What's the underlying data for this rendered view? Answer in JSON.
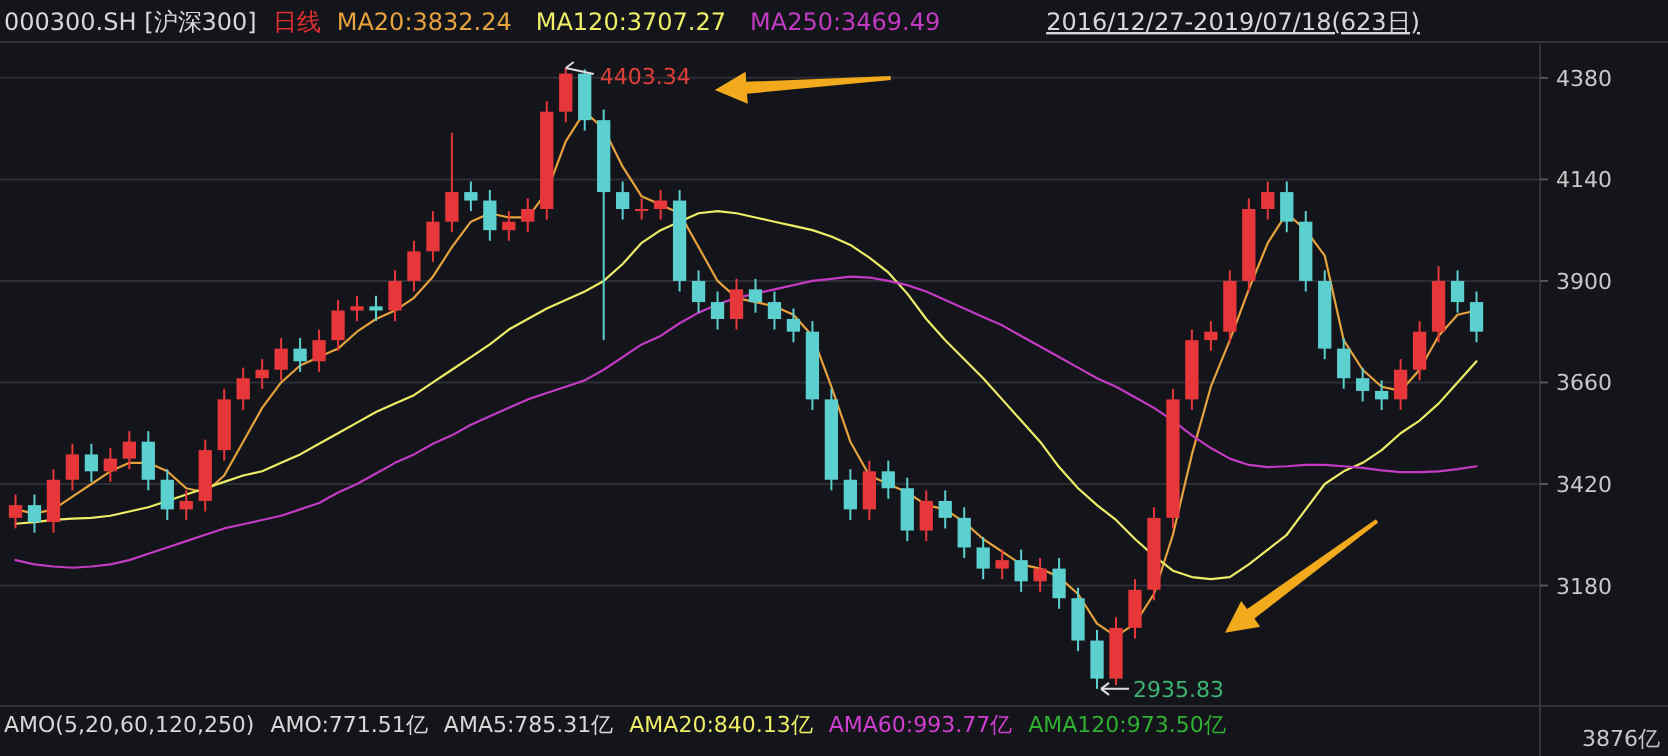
{
  "chart_data": {
    "type": "candlestick",
    "title": "000300.SH [沪深300]",
    "subtitle": "2016/12/27-2019/07/18(623日)",
    "categories": [
      null,
      null,
      null,
      null,
      null,
      null,
      null,
      null,
      null,
      null,
      null,
      null,
      null,
      null,
      null,
      null,
      null,
      null,
      null,
      null,
      null,
      null,
      null,
      null,
      null,
      null,
      null,
      null,
      null,
      null,
      null,
      null,
      null,
      null,
      null,
      null,
      null,
      null,
      null,
      null,
      null,
      null,
      null,
      null,
      null,
      null,
      null,
      null,
      null,
      null,
      null,
      null,
      null,
      null,
      null,
      null,
      null,
      null,
      null,
      null,
      null,
      null,
      null,
      null,
      null,
      null,
      null,
      null,
      null,
      null,
      null,
      null,
      null,
      null,
      null,
      null,
      null,
      null
    ],
    "ohlc": [
      [
        3340,
        3395,
        3315,
        3370
      ],
      [
        3370,
        3395,
        3305,
        3330
      ],
      [
        3330,
        3455,
        3305,
        3430
      ],
      [
        3430,
        3515,
        3405,
        3490
      ],
      [
        3490,
        3515,
        3425,
        3450
      ],
      [
        3450,
        3505,
        3425,
        3480
      ],
      [
        3480,
        3545,
        3455,
        3520
      ],
      [
        3520,
        3545,
        3405,
        3430
      ],
      [
        3430,
        3455,
        3335,
        3360
      ],
      [
        3360,
        3405,
        3335,
        3380
      ],
      [
        3380,
        3525,
        3355,
        3500
      ],
      [
        3500,
        3645,
        3475,
        3620
      ],
      [
        3620,
        3695,
        3595,
        3670
      ],
      [
        3670,
        3715,
        3645,
        3690
      ],
      [
        3690,
        3765,
        3665,
        3740
      ],
      [
        3740,
        3765,
        3685,
        3710
      ],
      [
        3710,
        3785,
        3685,
        3760
      ],
      [
        3760,
        3855,
        3735,
        3830
      ],
      [
        3830,
        3865,
        3805,
        3840
      ],
      [
        3840,
        3865,
        3805,
        3830
      ],
      [
        3830,
        3925,
        3805,
        3900
      ],
      [
        3900,
        3995,
        3875,
        3970
      ],
      [
        3970,
        4065,
        3945,
        4040
      ],
      [
        4040,
        4250,
        4015,
        4110
      ],
      [
        4110,
        4135,
        4065,
        4090
      ],
      [
        4090,
        4115,
        3995,
        4020
      ],
      [
        4020,
        4065,
        3995,
        4040
      ],
      [
        4040,
        4095,
        4015,
        4070
      ],
      [
        4070,
        4325,
        4045,
        4300
      ],
      [
        4300,
        4403.34,
        4275,
        4390
      ],
      [
        4390,
        4400,
        4255,
        4280
      ],
      [
        4280,
        4305,
        3760,
        4110
      ],
      [
        4110,
        4135,
        4045,
        4070
      ],
      [
        4070,
        4095,
        4045,
        4070
      ],
      [
        4070,
        4115,
        4045,
        4090
      ],
      [
        4090,
        4115,
        3875,
        3900
      ],
      [
        3900,
        3925,
        3825,
        3850
      ],
      [
        3850,
        3875,
        3785,
        3810
      ],
      [
        3810,
        3905,
        3785,
        3880
      ],
      [
        3880,
        3905,
        3825,
        3850
      ],
      [
        3850,
        3875,
        3785,
        3810
      ],
      [
        3810,
        3835,
        3755,
        3780
      ],
      [
        3780,
        3805,
        3595,
        3620
      ],
      [
        3620,
        3645,
        3405,
        3430
      ],
      [
        3430,
        3455,
        3335,
        3360
      ],
      [
        3360,
        3475,
        3335,
        3450
      ],
      [
        3450,
        3475,
        3385,
        3410
      ],
      [
        3410,
        3435,
        3285,
        3310
      ],
      [
        3310,
        3405,
        3285,
        3380
      ],
      [
        3380,
        3405,
        3315,
        3340
      ],
      [
        3340,
        3365,
        3245,
        3270
      ],
      [
        3270,
        3295,
        3195,
        3220
      ],
      [
        3220,
        3265,
        3195,
        3240
      ],
      [
        3240,
        3265,
        3165,
        3190
      ],
      [
        3190,
        3245,
        3165,
        3220
      ],
      [
        3220,
        3245,
        3125,
        3150
      ],
      [
        3150,
        3175,
        3025,
        3050
      ],
      [
        3050,
        3075,
        2935.83,
        2960
      ],
      [
        2960,
        3105,
        2945,
        3080
      ],
      [
        3080,
        3195,
        3055,
        3170
      ],
      [
        3170,
        3365,
        3145,
        3340
      ],
      [
        3340,
        3645,
        3315,
        3620
      ],
      [
        3620,
        3785,
        3595,
        3760
      ],
      [
        3760,
        3805,
        3735,
        3780
      ],
      [
        3780,
        3925,
        3755,
        3900
      ],
      [
        3900,
        4095,
        3875,
        4070
      ],
      [
        4070,
        4135,
        4045,
        4110
      ],
      [
        4110,
        4135,
        4015,
        4040
      ],
      [
        4040,
        4065,
        3875,
        3900
      ],
      [
        3900,
        3925,
        3715,
        3740
      ],
      [
        3740,
        3765,
        3645,
        3670
      ],
      [
        3670,
        3695,
        3615,
        3640
      ],
      [
        3640,
        3665,
        3595,
        3620
      ],
      [
        3620,
        3715,
        3595,
        3690
      ],
      [
        3690,
        3805,
        3665,
        3780
      ],
      [
        3780,
        3935,
        3755,
        3900
      ],
      [
        3900,
        3925,
        3825,
        3850
      ],
      [
        3850,
        3875,
        3755,
        3780
      ]
    ],
    "series": [
      {
        "type": "line",
        "name": "MA20:3832.24",
        "color": "#e6a23c",
        "values": [
          3360,
          3350,
          3360,
          3390,
          3420,
          3450,
          3470,
          3470,
          3450,
          3410,
          3400,
          3440,
          3520,
          3600,
          3660,
          3700,
          3720,
          3740,
          3780,
          3810,
          3830,
          3860,
          3910,
          3980,
          4040,
          4060,
          4050,
          4050,
          4110,
          4230,
          4300,
          4260,
          4170,
          4100,
          4080,
          4060,
          3980,
          3900,
          3860,
          3850,
          3840,
          3820,
          3770,
          3650,
          3520,
          3440,
          3420,
          3400,
          3370,
          3360,
          3330,
          3290,
          3260,
          3230,
          3220,
          3200,
          3160,
          3090,
          3060,
          3090,
          3160,
          3300,
          3490,
          3650,
          3760,
          3880,
          3990,
          4060,
          4020,
          3960,
          3760,
          3690,
          3650,
          3640,
          3690,
          3770,
          3820,
          3830
        ]
      },
      {
        "type": "line",
        "name": "MA120:3707.27",
        "color": "#eeee66",
        "values": [
          3326,
          3330,
          3335,
          3338,
          3340,
          3345,
          3355,
          3365,
          3380,
          3395,
          3410,
          3425,
          3440,
          3450,
          3470,
          3490,
          3515,
          3540,
          3565,
          3590,
          3610,
          3630,
          3660,
          3690,
          3720,
          3750,
          3785,
          3810,
          3835,
          3855,
          3875,
          3900,
          3940,
          3990,
          4020,
          4040,
          4060,
          4065,
          4060,
          4050,
          4040,
          4030,
          4020,
          4005,
          3985,
          3955,
          3920,
          3870,
          3810,
          3760,
          3715,
          3670,
          3620,
          3570,
          3520,
          3460,
          3410,
          3370,
          3335,
          3290,
          3250,
          3215,
          3200,
          3195,
          3200,
          3230,
          3265,
          3300,
          3360,
          3420,
          3450,
          3470,
          3500,
          3540,
          3570,
          3610,
          3660,
          3710
        ]
      },
      {
        "type": "line",
        "name": "MA250:3469.49",
        "color": "#c23bc2",
        "values": [
          3240,
          3230,
          3225,
          3222,
          3225,
          3230,
          3240,
          3255,
          3270,
          3285,
          3300,
          3315,
          3325,
          3335,
          3345,
          3360,
          3375,
          3400,
          3420,
          3445,
          3470,
          3490,
          3515,
          3535,
          3560,
          3580,
          3600,
          3620,
          3635,
          3650,
          3665,
          3690,
          3720,
          3750,
          3770,
          3800,
          3825,
          3845,
          3860,
          3870,
          3880,
          3890,
          3900,
          3905,
          3910,
          3908,
          3900,
          3890,
          3875,
          3855,
          3835,
          3815,
          3795,
          3770,
          3745,
          3720,
          3695,
          3670,
          3650,
          3625,
          3600,
          3570,
          3535,
          3505,
          3480,
          3465,
          3460,
          3462,
          3465,
          3465,
          3462,
          3458,
          3452,
          3448,
          3448,
          3450,
          3455,
          3462
        ]
      }
    ],
    "ylim": [
      2900,
      4460
    ],
    "yticks": [
      3180,
      3420,
      3660,
      3900,
      4140,
      4380
    ],
    "grid": "y",
    "legend": "top left",
    "annotations": [
      "4403.34",
      "2935.83",
      "日线",
      "AMO(5,20,60,120,250)",
      "AMO:771.51亿",
      "AMA5:785.31亿",
      "AMA20:840.13亿",
      "AMA60:993.77亿",
      "AMA120:973.50亿",
      "3876亿"
    ]
  }
}
